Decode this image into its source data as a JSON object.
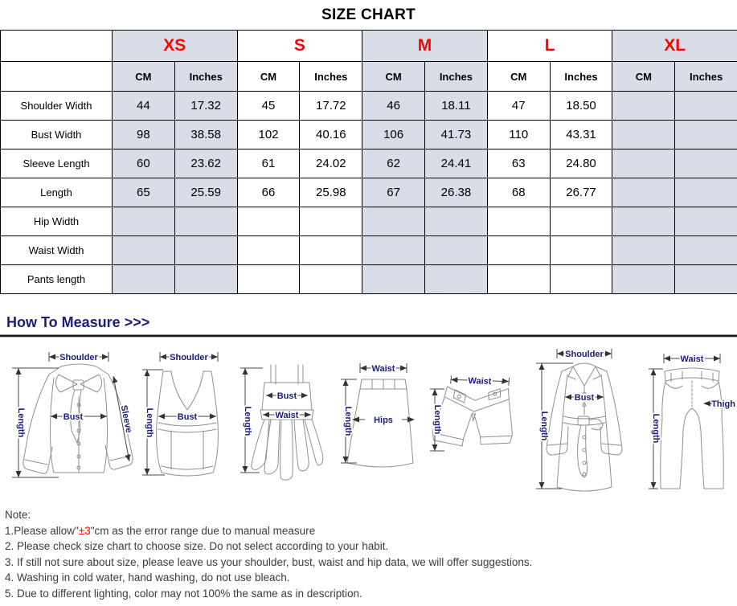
{
  "title": "SIZE CHART",
  "size_table": {
    "sizes": [
      "XS",
      "S",
      "M",
      "L",
      "XL"
    ],
    "units": [
      "CM",
      "Inches"
    ],
    "shaded_size_indexes": [
      0,
      2,
      4
    ],
    "rows": [
      {
        "label": "Shoulder Width",
        "values": [
          "44",
          "17.32",
          "45",
          "17.72",
          "46",
          "18.11",
          "47",
          "18.50",
          "",
          ""
        ]
      },
      {
        "label": "Bust Width",
        "values": [
          "98",
          "38.58",
          "102",
          "40.16",
          "106",
          "41.73",
          "110",
          "43.31",
          "",
          ""
        ]
      },
      {
        "label": "Sleeve Length",
        "values": [
          "60",
          "23.62",
          "61",
          "24.02",
          "62",
          "24.41",
          "63",
          "24.80",
          "",
          ""
        ]
      },
      {
        "label": "Length",
        "values": [
          "65",
          "25.59",
          "66",
          "25.98",
          "67",
          "26.38",
          "68",
          "26.77",
          "",
          ""
        ]
      },
      {
        "label": "Hip Width",
        "values": [
          "",
          "",
          "",
          "",
          "",
          "",
          "",
          "",
          "",
          ""
        ]
      },
      {
        "label": "Waist Width",
        "values": [
          "",
          "",
          "",
          "",
          "",
          "",
          "",
          "",
          "",
          ""
        ]
      },
      {
        "label": "Pants length",
        "values": [
          "",
          "",
          "",
          "",
          "",
          "",
          "",
          "",
          "",
          ""
        ]
      }
    ]
  },
  "measure": {
    "heading": "How To Measure >>>",
    "figures": [
      {
        "name": "blouse",
        "labels": {
          "shoulder": "Shoulder",
          "bust": "Bust",
          "length": "Length",
          "sleeve": "Sleeve"
        }
      },
      {
        "name": "tank-top",
        "labels": {
          "shoulder": "Shoulder",
          "bust": "Bust",
          "length": "Length"
        }
      },
      {
        "name": "dress",
        "labels": {
          "bust": "Bust",
          "waist": "Waist",
          "length": "Length"
        }
      },
      {
        "name": "skirt",
        "labels": {
          "waist": "Waist",
          "hips": "Hips",
          "length": "Length"
        }
      },
      {
        "name": "shorts",
        "labels": {
          "waist": "Waist",
          "length": "Length"
        }
      },
      {
        "name": "coat",
        "labels": {
          "shoulder": "Shoulder",
          "bust": "Bust",
          "length": "Length"
        }
      },
      {
        "name": "pants",
        "labels": {
          "waist": "Waist",
          "thigh": "Thigh",
          "length": "Length"
        }
      }
    ]
  },
  "notes": {
    "heading": "Note:",
    "line1_pre": "1.Please allow\"",
    "line1_red": "±3",
    "line1_post": "\"cm as the error range due to manual measure",
    "line2": "2. Please check size chart to choose size. Do not select according to your habit.",
    "line3": "3. If still not sure about size, please leave us your shoulder, bust, waist and hip data, we will offer suggestions.",
    "line4": "4. Washing in cold water, hand washing, do not use bleach.",
    "line5": "5. Due to different lighting, color may not 100% the same as in description."
  },
  "colors": {
    "accent_red": "#ff0000",
    "heading_navy": "#1c1c7a",
    "table_shade": "#d8dde7",
    "garment_line": "#8f8f8f"
  }
}
